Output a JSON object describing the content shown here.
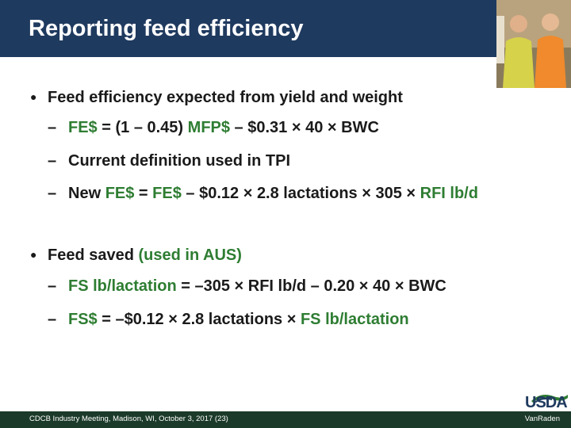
{
  "slide": {
    "title": "Reporting feed efficiency"
  },
  "bullets": [
    {
      "text": "Feed efficiency expected from yield and weight",
      "sub": [
        {
          "parts": [
            {
              "text": "FE$",
              "color": "green"
            },
            {
              "text": " = (1 – 0.45) ",
              "color": "dark"
            },
            {
              "text": "MFP$",
              "color": "green"
            },
            {
              "text": " – $0.31 × 40 × BWC",
              "color": "dark"
            }
          ]
        },
        {
          "parts": [
            {
              "text": "Current definition used in TPI",
              "color": "dark"
            }
          ]
        },
        {
          "parts": [
            {
              "text": "New ",
              "color": "dark"
            },
            {
              "text": "FE$",
              "color": "green"
            },
            {
              "text": " = ",
              "color": "dark"
            },
            {
              "text": "FE$",
              "color": "green"
            },
            {
              "text": " – $0.12 × 2.8 lactations × 305 × ",
              "color": "dark"
            },
            {
              "text": "RFI lb/d",
              "color": "green"
            }
          ]
        }
      ]
    },
    {
      "parts": [
        {
          "text": "Feed saved ",
          "color": "dark"
        },
        {
          "text": "(used in AUS)",
          "color": "green"
        }
      ],
      "sub": [
        {
          "parts": [
            {
              "text": "FS lb/lactation",
              "color": "green"
            },
            {
              "text": " = –305 × RFI lb/d – 0.20 × 40 × BWC",
              "color": "dark"
            }
          ]
        },
        {
          "parts": [
            {
              "text": "FS$",
              "color": "green"
            },
            {
              "text": " = –$0.12 × 2.8 lactations × ",
              "color": "dark"
            },
            {
              "text": "FS lb/lactation",
              "color": "green"
            }
          ]
        }
      ]
    }
  ],
  "footer": {
    "left": "CDCB Industry Meeting, Madison, WI, October 3, 2017 (23)",
    "right": "VanRaden"
  },
  "logo": {
    "text": "USDA"
  },
  "colors": {
    "title_bar": "#1f3a5f",
    "accent_green": "#2e7d32",
    "footer_bar": "#1b3a2a",
    "text_dark": "#1a1a1a"
  }
}
